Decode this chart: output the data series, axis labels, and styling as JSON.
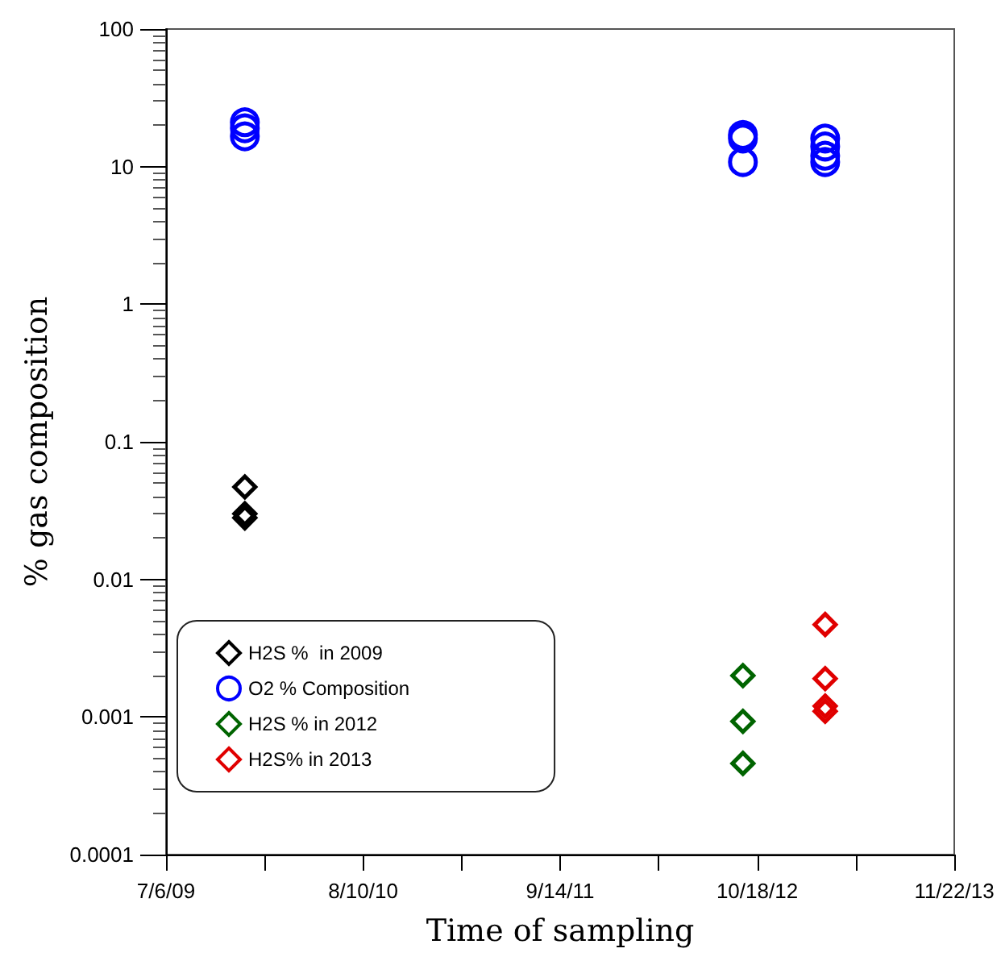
{
  "chart_data": {
    "type": "scatter",
    "xlabel": "Time of sampling",
    "ylabel": "% gas composition",
    "xlim": [
      "2009-07-06",
      "2013-11-22"
    ],
    "xticks": [
      {
        "value": "2009-07-06",
        "label": "7/6/09"
      },
      {
        "value": "2010-01-22",
        "label": null
      },
      {
        "value": "2010-08-10",
        "label": "8/10/10"
      },
      {
        "value": "2011-02-26",
        "label": null
      },
      {
        "value": "2011-09-14",
        "label": "9/14/11"
      },
      {
        "value": "2012-04-01",
        "label": null
      },
      {
        "value": "2012-10-18",
        "label": "10/18/12"
      },
      {
        "value": "2013-05-06",
        "label": null
      },
      {
        "value": "2013-11-22",
        "label": "11/22/13"
      }
    ],
    "ylim": [
      0.0001,
      100
    ],
    "yticks": [
      0.0001,
      0.001,
      0.01,
      0.1,
      1,
      10,
      100
    ],
    "log": "y",
    "grid": false,
    "legend": "bottom left",
    "series": [
      {
        "name": "H2S %  in 2009",
        "color": "#000000",
        "marker": "diamond",
        "x": [
          "2009-12-13",
          "2009-12-13",
          "2009-12-13"
        ],
        "values": [
          0.047,
          0.03,
          0.028
        ]
      },
      {
        "name": "O2 % Composition",
        "color": "#0000ff",
        "marker": "circle",
        "x": [
          "2009-12-13",
          "2009-12-13",
          "2009-12-13",
          "2012-09-19",
          "2012-09-19",
          "2012-09-19",
          "2013-03-05",
          "2013-03-05",
          "2013-03-05",
          "2013-03-05"
        ],
        "values": [
          21,
          19,
          16.6,
          17,
          16,
          10.8,
          16,
          14,
          12,
          10.8
        ]
      },
      {
        "name": "H2S % in 2012",
        "color": "#006400",
        "marker": "diamond",
        "x": [
          "2012-09-19",
          "2012-09-19",
          "2012-09-19"
        ],
        "values": [
          0.002,
          0.00093,
          0.00046
        ]
      },
      {
        "name": "H2S% in 2013",
        "color": "#e00000",
        "marker": "diamond",
        "x": [
          "2013-03-05",
          "2013-03-05",
          "2013-03-05",
          "2013-03-05"
        ],
        "values": [
          0.0047,
          0.0019,
          0.0012,
          0.0011
        ]
      }
    ]
  }
}
